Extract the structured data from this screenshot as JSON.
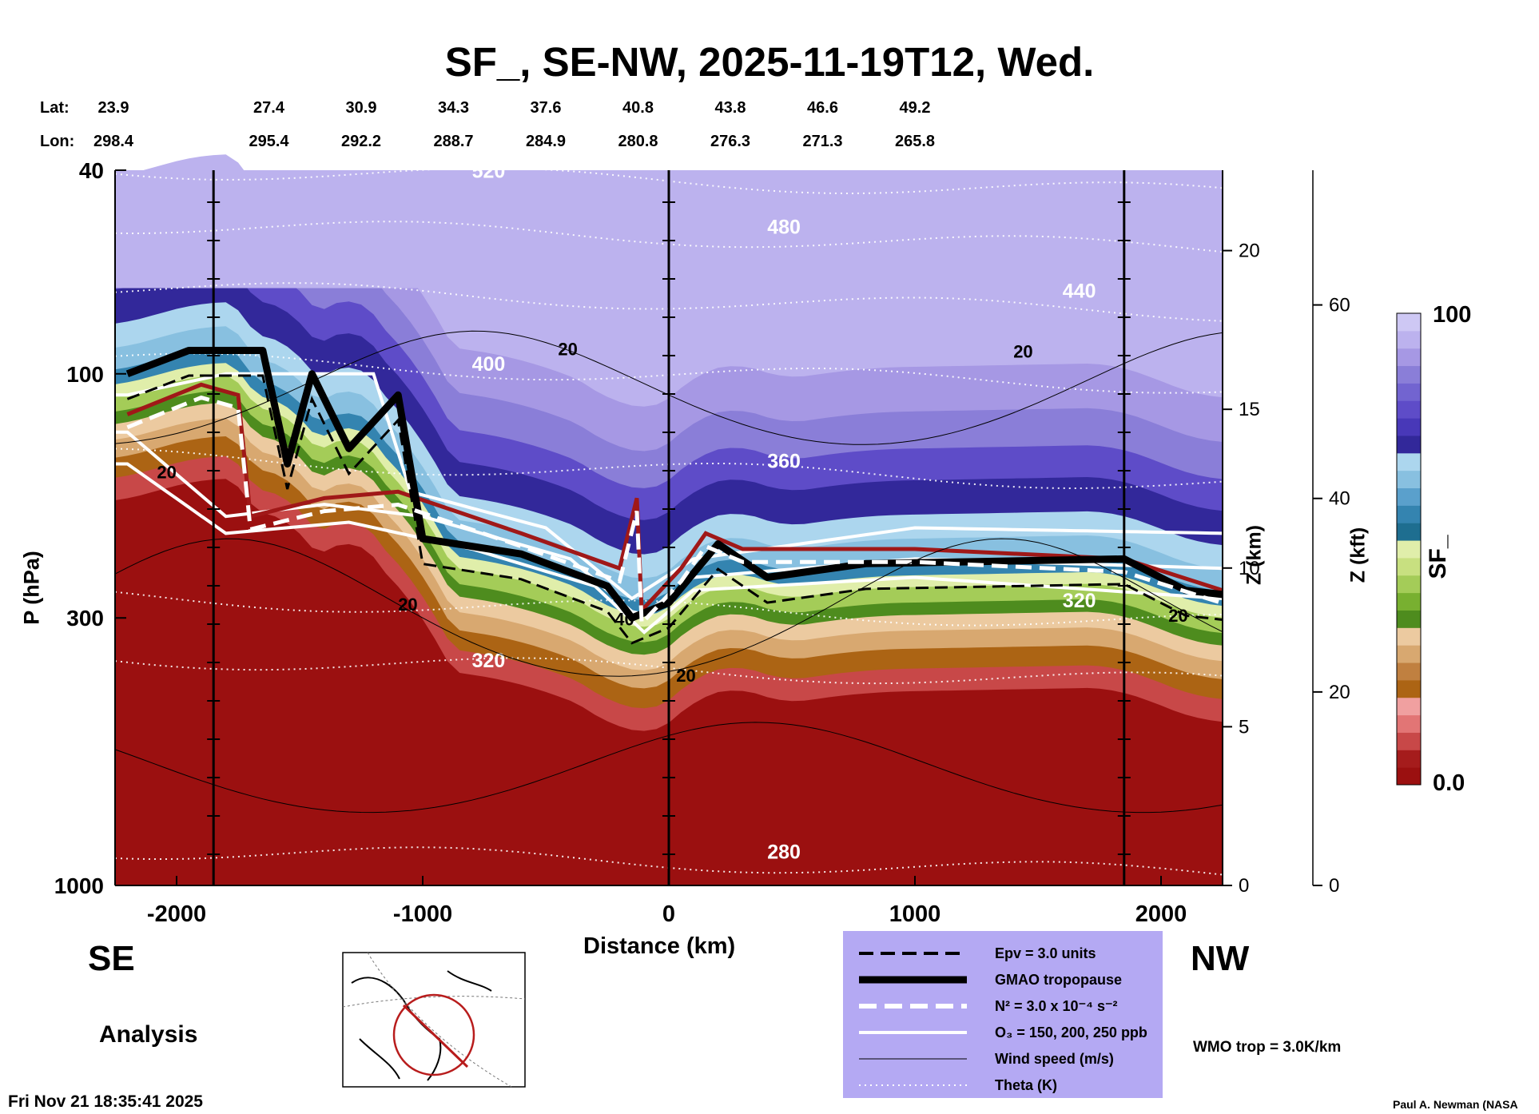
{
  "chart_data": {
    "type": "heatmap",
    "title": "SF_, SE-NW, 2025-11-19T12, Wed.",
    "xlabel": "Distance (km)",
    "ylabel": "P (hPa)",
    "ylabel_right_1": "Z (km)",
    "ylabel_right_2": "Z (kft)",
    "colorbar_label": "SF_",
    "xlim": [
      -2250,
      2250
    ],
    "ylim": [
      1000,
      40
    ],
    "x_ticks": [
      -2000,
      -1000,
      0,
      1000,
      2000
    ],
    "x_tick_labels": [
      "-2000",
      "-1000",
      "0",
      "1000",
      "2000"
    ],
    "p_ticks": [
      40,
      100,
      300,
      1000
    ],
    "p_tick_labels": [
      "40",
      "100",
      "300",
      "1000"
    ],
    "z_km_ticks": [
      0,
      5,
      10,
      15,
      20
    ],
    "z_km_tick_labels": [
      "0",
      "5",
      "10",
      "15",
      "20"
    ],
    "z_kft_ticks": [
      0,
      20,
      40,
      60
    ],
    "z_kft_tick_labels": [
      "0",
      "20",
      "40",
      "60"
    ],
    "colorbar_range": [
      0.0,
      100
    ],
    "colorbar_max_label": "100",
    "colorbar_min_label": "0.0",
    "colorbar_colors": [
      "#9b1010",
      "#a51c1c",
      "#c84848",
      "#e27575",
      "#f0a0a0",
      "#ac6414",
      "#c08040",
      "#d8a870",
      "#eccaa0",
      "#4e8c1e",
      "#78b030",
      "#a4cc58",
      "#c8e080",
      "#e0eeaa",
      "#1e6e90",
      "#3484b0",
      "#5aa0cc",
      "#88c0e0",
      "#acd6ee",
      "#32289a",
      "#4838b8",
      "#5e4cc8",
      "#7264d0",
      "#8a7ed8",
      "#a698e4",
      "#bcb2ee",
      "#cec8f4"
    ],
    "lat_label": "Lat:",
    "lon_label": "Lon:",
    "lat": [
      "23.9",
      "27.4",
      "30.9",
      "34.3",
      "37.6",
      "40.8",
      "43.8",
      "46.6",
      "49.2"
    ],
    "lon": [
      "298.4",
      "295.4",
      "292.2",
      "288.7",
      "284.9",
      "280.8",
      "276.3",
      "271.3",
      "265.8"
    ],
    "vertical_lines_km": [
      -1850,
      0,
      1850
    ],
    "theta_levels": [
      {
        "label": "520",
        "p": 42
      },
      {
        "label": "480",
        "p": 54
      },
      {
        "label": "440",
        "p": 72
      },
      {
        "label": "400",
        "p": 100
      },
      {
        "label": "360",
        "p": 155
      },
      {
        "label": "320",
        "p": 290
      },
      {
        "label": "320",
        "p": 380
      },
      {
        "label": "280",
        "p": 900
      }
    ],
    "wind_contour_labels": [
      "20",
      "20",
      "20",
      "20",
      "20",
      "20",
      "20",
      "40"
    ],
    "tropopause_gmao_points": [
      {
        "x": -2200,
        "p": 100
      },
      {
        "x": -1950,
        "p": 90
      },
      {
        "x": -1650,
        "p": 90
      },
      {
        "x": -1550,
        "p": 150
      },
      {
        "x": -1450,
        "p": 100
      },
      {
        "x": -1300,
        "p": 140
      },
      {
        "x": -1100,
        "p": 110
      },
      {
        "x": -1000,
        "p": 210
      },
      {
        "x": -600,
        "p": 225
      },
      {
        "x": -250,
        "p": 260
      },
      {
        "x": -150,
        "p": 300
      },
      {
        "x": 0,
        "p": 280
      },
      {
        "x": 200,
        "p": 215
      },
      {
        "x": 400,
        "p": 250
      },
      {
        "x": 800,
        "p": 235
      },
      {
        "x": 1850,
        "p": 230
      },
      {
        "x": 2100,
        "p": 265
      },
      {
        "x": 2250,
        "p": 270
      }
    ],
    "wmo_tropopause_points": [
      {
        "x": -2200,
        "p": 120
      },
      {
        "x": -1900,
        "p": 105
      },
      {
        "x": -1750,
        "p": 110
      },
      {
        "x": -1700,
        "p": 190
      },
      {
        "x": -1400,
        "p": 175
      },
      {
        "x": -1100,
        "p": 170
      },
      {
        "x": -600,
        "p": 205
      },
      {
        "x": -200,
        "p": 240
      },
      {
        "x": -130,
        "p": 175
      },
      {
        "x": -110,
        "p": 290
      },
      {
        "x": 50,
        "p": 240
      },
      {
        "x": 150,
        "p": 205
      },
      {
        "x": 300,
        "p": 220
      },
      {
        "x": 1000,
        "p": 220
      },
      {
        "x": 1850,
        "p": 230
      },
      {
        "x": 2250,
        "p": 265
      }
    ],
    "ozone_contours": [
      [
        {
          "x": -2200,
          "p": 110
        },
        {
          "x": -1800,
          "p": 100
        },
        {
          "x": -1200,
          "p": 100
        },
        {
          "x": -1050,
          "p": 170
        },
        {
          "x": -500,
          "p": 200
        },
        {
          "x": -150,
          "p": 275
        },
        {
          "x": 100,
          "p": 230
        },
        {
          "x": 1000,
          "p": 200
        },
        {
          "x": 2250,
          "p": 205
        }
      ],
      [
        {
          "x": -2200,
          "p": 130
        },
        {
          "x": -1800,
          "p": 190
        },
        {
          "x": -1400,
          "p": 180
        },
        {
          "x": -1000,
          "p": 190
        },
        {
          "x": -400,
          "p": 230
        },
        {
          "x": -120,
          "p": 300
        },
        {
          "x": 100,
          "p": 250
        },
        {
          "x": 1000,
          "p": 230
        },
        {
          "x": 2250,
          "p": 240
        }
      ],
      [
        {
          "x": -2200,
          "p": 150
        },
        {
          "x": -1800,
          "p": 205
        },
        {
          "x": -1300,
          "p": 195
        },
        {
          "x": -800,
          "p": 220
        },
        {
          "x": -300,
          "p": 260
        },
        {
          "x": -100,
          "p": 320
        },
        {
          "x": 100,
          "p": 265
        },
        {
          "x": 1000,
          "p": 250
        },
        {
          "x": 2250,
          "p": 275
        }
      ]
    ],
    "legend_title_entries": [
      {
        "style": "dashed-black",
        "label": "Epv = 3.0 units"
      },
      {
        "style": "thick-black",
        "label": "GMAO tropopause"
      },
      {
        "style": "dashed-white",
        "label": "N² = 3.0 x 10⁻⁴ s⁻²"
      },
      {
        "style": "solid-white",
        "label": "O₃ = 150, 200, 250 ppb"
      },
      {
        "style": "thin-black",
        "label": "Wind speed (m/s)"
      },
      {
        "style": "dotted-white",
        "label": "Theta (K)"
      }
    ]
  },
  "labels": {
    "se": "SE",
    "nw": "NW",
    "analysis": "Analysis",
    "wmo": "WMO trop = 3.0K/km",
    "date": "Fri Nov 21 18:35:41 2025",
    "credit": "Paul A. Newman (NASA"
  },
  "colors": {
    "wmo_line": "#a01818",
    "legend_bg": "#b4a9f3"
  }
}
